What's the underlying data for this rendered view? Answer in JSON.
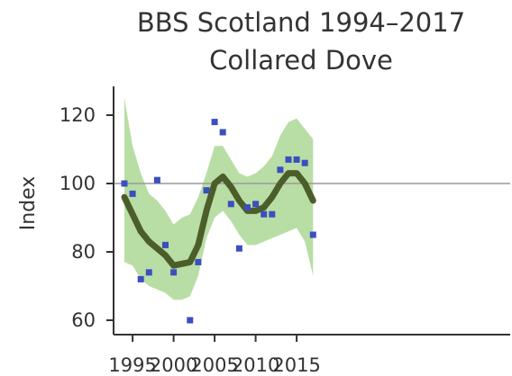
{
  "chart_data": {
    "type": "line",
    "title": "BBS Scotland 1994–2017",
    "subtitle": "Collared Dove",
    "xlabel": "",
    "ylabel": "Index",
    "xlim": [
      1993.6,
      2017.2
    ],
    "ylim": [
      56,
      128
    ],
    "x_ticks": [
      1995,
      2000,
      2005,
      2010,
      2015
    ],
    "y_ticks": [
      60,
      80,
      100,
      120
    ],
    "reference_line": 100,
    "grid": false,
    "colors": {
      "points": "#3b4fbf",
      "trend": "#4b5e2a",
      "band": "#b9deA5",
      "reference": "#999999",
      "axis": "#333333"
    },
    "series": [
      {
        "kind": "points",
        "x": [
          1994,
          1995,
          1996,
          1997,
          1998,
          1999,
          2000,
          2002,
          2003,
          2004,
          2005,
          2006,
          2007,
          2008,
          2009,
          2010,
          2011,
          2012,
          2013,
          2014,
          2015,
          2016,
          2017
        ],
        "y": [
          100,
          97,
          72,
          74,
          101,
          82,
          74,
          60,
          77,
          98,
          118,
          115,
          94,
          81,
          93,
          94,
          91,
          91,
          104,
          107,
          107,
          106,
          85
        ]
      },
      {
        "kind": "trend",
        "x": [
          1994,
          1995,
          1996,
          1997,
          1998,
          1999,
          2000,
          2001,
          2002,
          2003,
          2004,
          2005,
          2006,
          2007,
          2008,
          2009,
          2010,
          2011,
          2012,
          2013,
          2014,
          2015,
          2016,
          2017
        ],
        "y": [
          96,
          91,
          86,
          83,
          81,
          79,
          76,
          76.5,
          77,
          82,
          92,
          100,
          102,
          99,
          95,
          92,
          92,
          93,
          96,
          100,
          103,
          103,
          100,
          95
        ]
      },
      {
        "kind": "band",
        "x": [
          1994,
          1995,
          1996,
          1997,
          1998,
          1999,
          2000,
          2001,
          2002,
          2003,
          2004,
          2005,
          2006,
          2007,
          2008,
          2009,
          2010,
          2011,
          2012,
          2013,
          2014,
          2015,
          2016,
          2017
        ],
        "lower": [
          77,
          76,
          72,
          70,
          69,
          68,
          66,
          66,
          67,
          73,
          84,
          90,
          92,
          89,
          85,
          82,
          82,
          83,
          84,
          85,
          86,
          87,
          83,
          73
        ],
        "upper": [
          125,
          111,
          103,
          97,
          95,
          92,
          88,
          90,
          91,
          96,
          103,
          111,
          111,
          107,
          103,
          102,
          103,
          105,
          108,
          114,
          118,
          119,
          116,
          113
        ]
      }
    ]
  }
}
